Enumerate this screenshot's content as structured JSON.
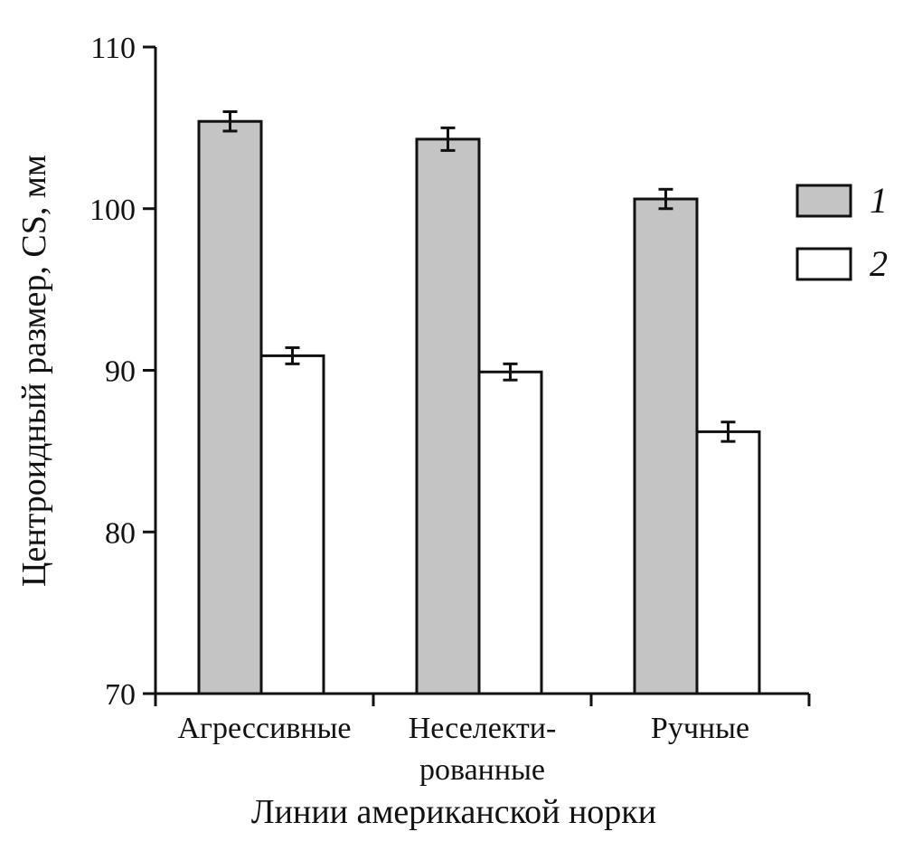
{
  "chart_data": {
    "type": "bar",
    "xlabel": "Линии американской норки",
    "ylabel": "Центроидный размер, CS, мм",
    "ylim": [
      70,
      110
    ],
    "yticks": [
      70,
      80,
      90,
      100,
      110
    ],
    "categories": [
      [
        "Агрессивные"
      ],
      [
        "Неселекти-",
        "рованные"
      ],
      [
        "Ручные"
      ]
    ],
    "series": [
      {
        "name": "1",
        "color": "#c4c4c4",
        "values": [
          105.4,
          104.3,
          100.6
        ],
        "errors": [
          0.6,
          0.7,
          0.6
        ]
      },
      {
        "name": "2",
        "color": "#ffffff",
        "values": [
          90.9,
          89.9,
          86.2
        ],
        "errors": [
          0.5,
          0.5,
          0.6
        ]
      }
    ],
    "grid": false,
    "legend": "right"
  }
}
